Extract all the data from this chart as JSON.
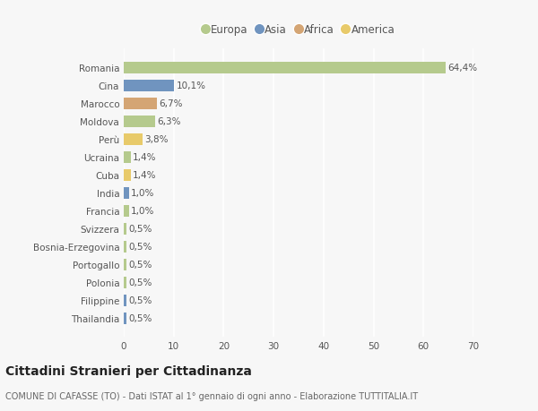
{
  "countries": [
    "Romania",
    "Cina",
    "Marocco",
    "Moldova",
    "Perù",
    "Ucraina",
    "Cuba",
    "India",
    "Francia",
    "Svizzera",
    "Bosnia-Erzegovina",
    "Portogallo",
    "Polonia",
    "Filippine",
    "Thailandia"
  ],
  "values": [
    64.4,
    10.1,
    6.7,
    6.3,
    3.8,
    1.4,
    1.4,
    1.0,
    1.0,
    0.5,
    0.5,
    0.5,
    0.5,
    0.5,
    0.5
  ],
  "labels": [
    "64,4%",
    "10,1%",
    "6,7%",
    "6,3%",
    "3,8%",
    "1,4%",
    "1,4%",
    "1,0%",
    "1,0%",
    "0,5%",
    "0,5%",
    "0,5%",
    "0,5%",
    "0,5%",
    "0,5%"
  ],
  "continents": [
    "Europa",
    "Asia",
    "Africa",
    "Europa",
    "America",
    "Europa",
    "America",
    "Asia",
    "Europa",
    "Europa",
    "Europa",
    "Europa",
    "Europa",
    "Asia",
    "Asia"
  ],
  "colors": {
    "Europa": "#b5ca8d",
    "Asia": "#7094bf",
    "Africa": "#d4a574",
    "America": "#e8ca6a"
  },
  "legend_order": [
    "Europa",
    "Asia",
    "Africa",
    "America"
  ],
  "xlim": [
    0,
    70
  ],
  "xticks": [
    0,
    10,
    20,
    30,
    40,
    50,
    60,
    70
  ],
  "title": "Cittadini Stranieri per Cittadinanza",
  "subtitle": "COMUNE DI CAFASSE (TO) - Dati ISTAT al 1° gennaio di ogni anno - Elaborazione TUTTITALIA.IT",
  "bg_color": "#f7f7f7",
  "grid_color": "#ffffff",
  "bar_height": 0.65,
  "label_fontsize": 7.5,
  "tick_fontsize": 7.5,
  "title_fontsize": 10,
  "subtitle_fontsize": 7,
  "legend_fontsize": 8.5
}
